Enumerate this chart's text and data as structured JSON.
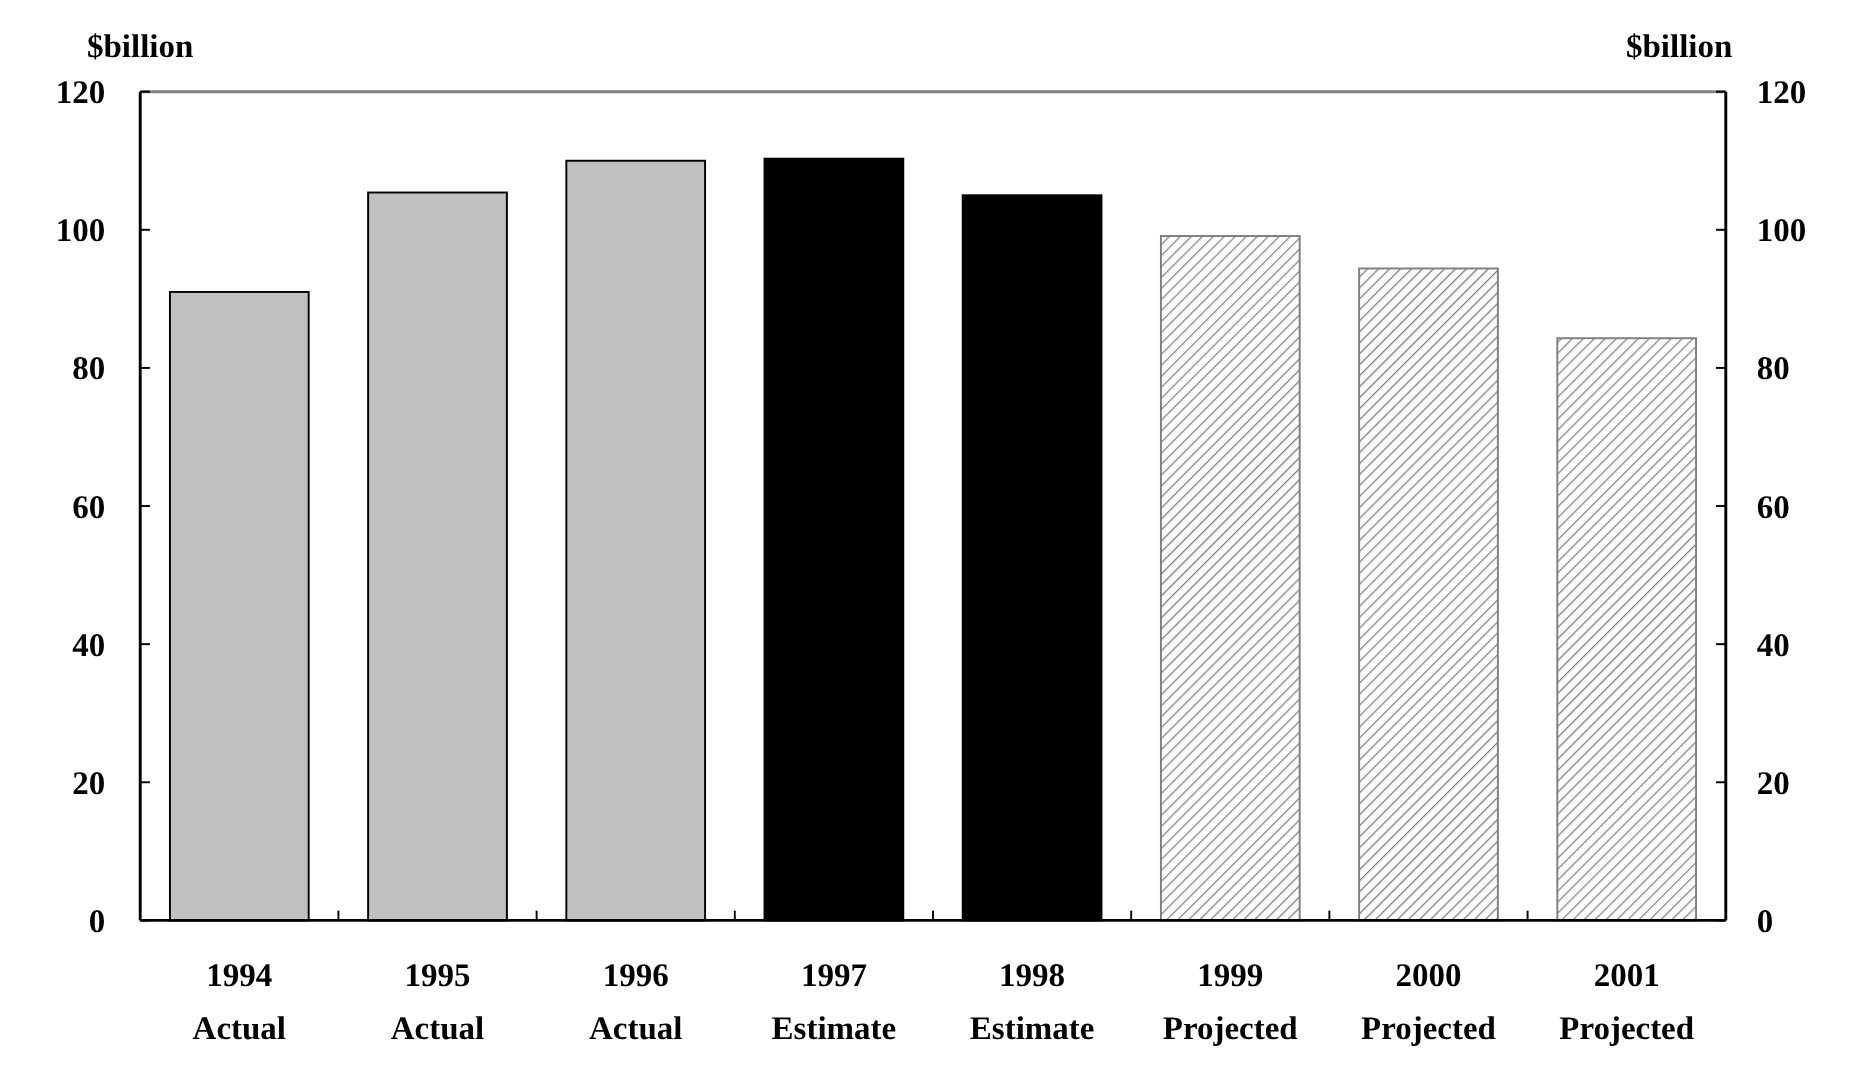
{
  "chart_data": {
    "type": "bar",
    "ylabel": "$billion",
    "y2label": "$billion",
    "categories": [
      "1994\nActual",
      "1995\nActual",
      "1996\nActual",
      "1997\nEstimate",
      "1998\nEstimate",
      "1999\nProjected",
      "2000\nProjected",
      "2001\nProjected"
    ],
    "values": [
      91,
      105.4,
      110,
      110.3,
      105,
      99.1,
      94.4,
      84.3
    ],
    "colors": [
      "#c0c0c0",
      "#c0c0c0",
      "#c0c0c0",
      "#000000",
      "#000000",
      "#7f7f7f",
      "#7f7f7f",
      "#7f7f7f"
    ],
    "ylim": [
      0,
      120
    ],
    "yticks": [
      0,
      20,
      40,
      60,
      80,
      100,
      120
    ],
    "y2lim": [
      0,
      120
    ],
    "y2ticks": [
      0,
      20,
      40,
      60,
      80,
      100,
      120
    ],
    "grid": false
  }
}
